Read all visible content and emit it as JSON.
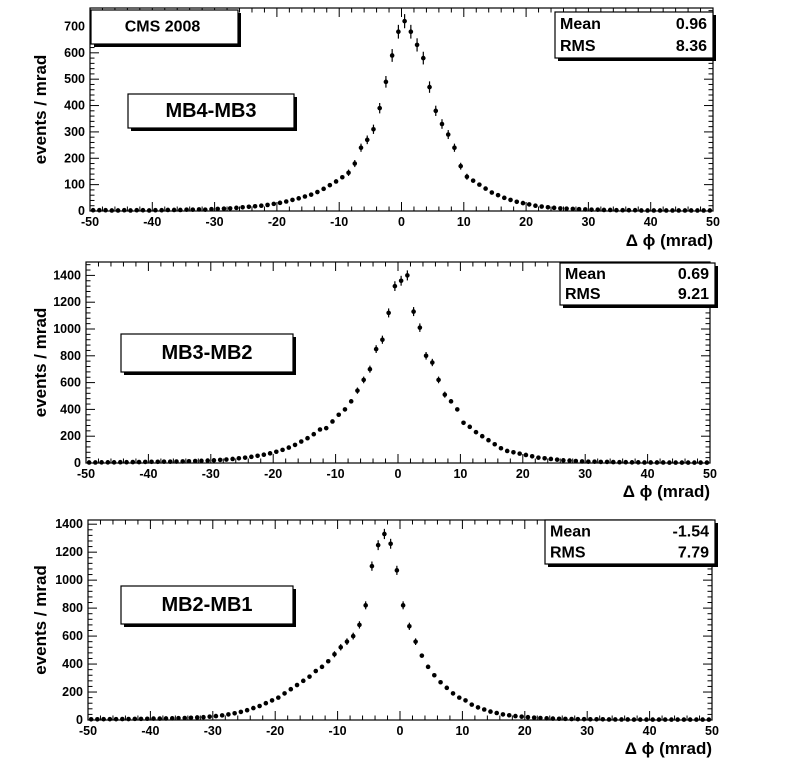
{
  "chart_data": [
    {
      "type": "scatter",
      "title": "MB4-MB3",
      "experiment_label": "CMS 2008",
      "xlabel": "Δ ϕ (mrad)",
      "ylabel": "events / mrad",
      "xlim": [
        -50,
        50
      ],
      "ylim": [
        0,
        770
      ],
      "x_ticks": [
        "-50",
        "-40",
        "-30",
        "-20",
        "-10",
        "0",
        "10",
        "20",
        "30",
        "40",
        "50"
      ],
      "y_ticks": [
        "0",
        "100",
        "200",
        "300",
        "400",
        "500",
        "600",
        "700"
      ],
      "stats": {
        "mean_label": "Mean",
        "mean": "0.96",
        "rms_label": "RMS",
        "rms": "8.36"
      },
      "series": [
        {
          "name": "MB4-MB3",
          "x": [
            -49.5,
            -48.5,
            -47.5,
            -46.5,
            -45.5,
            -44.5,
            -43.5,
            -42.5,
            -41.5,
            -40.5,
            -39.5,
            -38.5,
            -37.5,
            -36.5,
            -35.5,
            -34.5,
            -33.5,
            -32.5,
            -31.5,
            -30.5,
            -29.5,
            -28.5,
            -27.5,
            -26.5,
            -25.5,
            -24.5,
            -23.5,
            -22.5,
            -21.5,
            -20.5,
            -19.5,
            -18.5,
            -17.5,
            -16.5,
            -15.5,
            -14.5,
            -13.5,
            -12.5,
            -11.5,
            -10.5,
            -9.5,
            -8.5,
            -7.5,
            -6.5,
            -5.5,
            -4.5,
            -3.5,
            -2.5,
            -1.5,
            -0.5,
            0.5,
            1.5,
            2.5,
            3.5,
            4.5,
            5.5,
            6.5,
            7.5,
            8.5,
            9.5,
            10.5,
            11.5,
            12.5,
            13.5,
            14.5,
            15.5,
            16.5,
            17.5,
            18.5,
            19.5,
            20.5,
            21.5,
            22.5,
            23.5,
            24.5,
            25.5,
            26.5,
            27.5,
            28.5,
            29.5,
            30.5,
            31.5,
            32.5,
            33.5,
            34.5,
            35.5,
            36.5,
            37.5,
            38.5,
            39.5,
            40.5,
            41.5,
            42.5,
            43.5,
            44.5,
            45.5,
            46.5,
            47.5,
            48.5,
            49.5
          ],
          "y": [
            3,
            3,
            3,
            2,
            2,
            3,
            2,
            3,
            3,
            2,
            3,
            3,
            4,
            4,
            4,
            5,
            5,
            6,
            5,
            7,
            8,
            9,
            10,
            12,
            14,
            16,
            18,
            20,
            23,
            27,
            31,
            36,
            42,
            48,
            55,
            62,
            72,
            84,
            98,
            112,
            128,
            145,
            180,
            240,
            270,
            310,
            390,
            490,
            590,
            680,
            720,
            680,
            630,
            580,
            470,
            380,
            330,
            290,
            240,
            170,
            130,
            115,
            100,
            85,
            70,
            60,
            50,
            42,
            35,
            30,
            25,
            20,
            17,
            14,
            12,
            10,
            9,
            8,
            7,
            6,
            5,
            5,
            4,
            4,
            3,
            3,
            3,
            3,
            2,
            2,
            2,
            2,
            2,
            2,
            2,
            2,
            2,
            2,
            2,
            2
          ],
          "err": [
            1.7,
            1.7,
            1.7,
            1.4,
            1.4,
            1.7,
            1.4,
            1.7,
            1.7,
            1.4,
            1.7,
            1.7,
            2,
            2,
            2,
            2.2,
            2.2,
            2.4,
            2.2,
            2.6,
            2.8,
            3,
            3.2,
            3.5,
            3.7,
            4,
            4.2,
            4.5,
            4.8,
            5.2,
            5.6,
            6,
            6.5,
            6.9,
            7.4,
            7.9,
            8.5,
            9.2,
            9.9,
            10.6,
            11.3,
            12,
            13.4,
            15.5,
            16.4,
            17.6,
            19.7,
            22.1,
            24.3,
            26.1,
            26.8,
            26.1,
            25.1,
            24.1,
            21.7,
            19.5,
            18.2,
            17,
            15.5,
            13,
            11.4,
            10.7,
            10,
            9.2,
            8.4,
            7.7,
            7.1,
            6.5,
            5.9,
            5.5,
            5,
            4.5,
            4.1,
            3.7,
            3.5,
            3.2,
            3,
            2.8,
            2.6,
            2.4,
            2.2,
            2.2,
            2,
            2,
            1.7,
            1.7,
            1.7,
            1.7,
            1.4,
            1.4,
            1.4,
            1.4,
            1.4,
            1.4,
            1.4,
            1.4,
            1.4,
            1.4,
            1.4,
            1.4
          ]
        }
      ]
    },
    {
      "type": "scatter",
      "title": "MB3-MB2",
      "xlabel": "Δ ϕ (mrad)",
      "ylabel": "events / mrad",
      "xlim": [
        -50,
        50
      ],
      "ylim": [
        0,
        1500
      ],
      "x_ticks": [
        "-50",
        "-40",
        "-30",
        "-20",
        "-10",
        "0",
        "10",
        "20",
        "30",
        "40",
        "50"
      ],
      "y_ticks": [
        "0",
        "200",
        "400",
        "600",
        "800",
        "1000",
        "1200",
        "1400"
      ],
      "stats": {
        "mean_label": "Mean",
        "mean": "0.69",
        "rms_label": "RMS",
        "rms": "9.21"
      },
      "series": [
        {
          "name": "MB3-MB2",
          "x": [
            -49.5,
            -48.5,
            -47.5,
            -46.5,
            -45.5,
            -44.5,
            -43.5,
            -42.5,
            -41.5,
            -40.5,
            -39.5,
            -38.5,
            -37.5,
            -36.5,
            -35.5,
            -34.5,
            -33.5,
            -32.5,
            -31.5,
            -30.5,
            -29.5,
            -28.5,
            -27.5,
            -26.5,
            -25.5,
            -24.5,
            -23.5,
            -22.5,
            -21.5,
            -20.5,
            -19.5,
            -18.5,
            -17.5,
            -16.5,
            -15.5,
            -14.5,
            -13.5,
            -12.5,
            -11.5,
            -10.5,
            -9.5,
            -8.5,
            -7.5,
            -6.5,
            -5.5,
            -4.5,
            -3.5,
            -2.5,
            -1.5,
            -0.5,
            0.5,
            1.5,
            2.5,
            3.5,
            4.5,
            5.5,
            6.5,
            7.5,
            8.5,
            9.5,
            10.5,
            11.5,
            12.5,
            13.5,
            14.5,
            15.5,
            16.5,
            17.5,
            18.5,
            19.5,
            20.5,
            21.5,
            22.5,
            23.5,
            24.5,
            25.5,
            26.5,
            27.5,
            28.5,
            29.5,
            30.5,
            31.5,
            32.5,
            33.5,
            34.5,
            35.5,
            36.5,
            37.5,
            38.5,
            39.5,
            40.5,
            41.5,
            42.5,
            43.5,
            44.5,
            45.5,
            46.5,
            47.5,
            48.5,
            49.5
          ],
          "y": [
            4,
            4,
            5,
            5,
            5,
            6,
            6,
            7,
            7,
            8,
            9,
            9,
            10,
            10,
            11,
            12,
            13,
            15,
            16,
            18,
            20,
            23,
            26,
            30,
            35,
            40,
            46,
            54,
            62,
            72,
            84,
            98,
            115,
            135,
            160,
            185,
            215,
            250,
            260,
            310,
            360,
            400,
            460,
            540,
            620,
            700,
            850,
            920,
            1120,
            1320,
            1360,
            1400,
            1130,
            1010,
            800,
            750,
            620,
            510,
            460,
            400,
            300,
            270,
            230,
            200,
            170,
            140,
            110,
            90,
            80,
            70,
            60,
            50,
            40,
            35,
            30,
            25,
            20,
            18,
            15,
            12,
            10,
            10,
            8,
            8,
            7,
            6,
            6,
            5,
            5,
            4,
            4,
            4,
            4,
            3,
            3,
            3,
            3,
            3,
            3,
            3
          ],
          "err": [
            2,
            2,
            2.2,
            2.2,
            2.2,
            2.4,
            2.4,
            2.6,
            2.6,
            2.8,
            3,
            3,
            3.2,
            3.2,
            3.3,
            3.5,
            3.6,
            3.9,
            4,
            4.2,
            4.5,
            4.8,
            5.1,
            5.5,
            5.9,
            6.3,
            6.8,
            7.3,
            7.9,
            8.5,
            9.2,
            9.9,
            10.7,
            11.6,
            12.6,
            13.6,
            14.7,
            15.8,
            16.1,
            17.6,
            19,
            20,
            21.4,
            23.2,
            24.9,
            26.5,
            29.2,
            30.3,
            33.5,
            36.3,
            36.9,
            37.4,
            33.6,
            31.8,
            28.3,
            27.4,
            24.9,
            22.6,
            21.4,
            20,
            17.3,
            16.4,
            15.2,
            14.1,
            13,
            11.8,
            10.5,
            9.5,
            8.9,
            8.4,
            7.7,
            7.1,
            6.3,
            5.9,
            5.5,
            5,
            4.5,
            4.2,
            3.9,
            3.5,
            3.2,
            3.2,
            2.8,
            2.8,
            2.6,
            2.4,
            2.4,
            2.2,
            2.2,
            2,
            2,
            2,
            2,
            1.7,
            1.7,
            1.7,
            1.7,
            1.7,
            1.7,
            1.7
          ]
        }
      ]
    },
    {
      "type": "scatter",
      "title": "MB2-MB1",
      "xlabel": "Δ ϕ (mrad)",
      "ylabel": "events / mrad",
      "xlim": [
        -50,
        50
      ],
      "ylim": [
        0,
        1430
      ],
      "x_ticks": [
        "-50",
        "-40",
        "-30",
        "-20",
        "-10",
        "0",
        "10",
        "20",
        "30",
        "40",
        "50"
      ],
      "y_ticks": [
        "0",
        "200",
        "400",
        "600",
        "800",
        "1000",
        "1200",
        "1400"
      ],
      "stats": {
        "mean_label": "Mean",
        "mean": "-1.54",
        "rms_label": "RMS",
        "rms": "7.79"
      },
      "series": [
        {
          "name": "MB2-MB1",
          "x": [
            -49.5,
            -48.5,
            -47.5,
            -46.5,
            -45.5,
            -44.5,
            -43.5,
            -42.5,
            -41.5,
            -40.5,
            -39.5,
            -38.5,
            -37.5,
            -36.5,
            -35.5,
            -34.5,
            -33.5,
            -32.5,
            -31.5,
            -30.5,
            -29.5,
            -28.5,
            -27.5,
            -26.5,
            -25.5,
            -24.5,
            -23.5,
            -22.5,
            -21.5,
            -20.5,
            -19.5,
            -18.5,
            -17.5,
            -16.5,
            -15.5,
            -14.5,
            -13.5,
            -12.5,
            -11.5,
            -10.5,
            -9.5,
            -8.5,
            -7.5,
            -6.5,
            -5.5,
            -4.5,
            -3.5,
            -2.5,
            -1.5,
            -0.5,
            0.5,
            1.5,
            2.5,
            3.5,
            4.5,
            5.5,
            6.5,
            7.5,
            8.5,
            9.5,
            10.5,
            11.5,
            12.5,
            13.5,
            14.5,
            15.5,
            16.5,
            17.5,
            18.5,
            19.5,
            20.5,
            21.5,
            22.5,
            23.5,
            24.5,
            25.5,
            26.5,
            27.5,
            28.5,
            29.5,
            30.5,
            31.5,
            32.5,
            33.5,
            34.5,
            35.5,
            36.5,
            37.5,
            38.5,
            39.5,
            40.5,
            41.5,
            42.5,
            43.5,
            44.5,
            45.5,
            46.5,
            47.5,
            48.5,
            49.5
          ],
          "y": [
            5,
            5,
            6,
            6,
            6,
            7,
            7,
            8,
            8,
            9,
            10,
            10,
            11,
            12,
            13,
            14,
            16,
            18,
            20,
            24,
            28,
            33,
            40,
            48,
            58,
            70,
            85,
            100,
            120,
            140,
            160,
            190,
            220,
            250,
            280,
            310,
            350,
            380,
            420,
            470,
            520,
            560,
            600,
            680,
            820,
            1100,
            1250,
            1330,
            1260,
            1070,
            820,
            670,
            560,
            460,
            380,
            320,
            270,
            230,
            190,
            160,
            140,
            110,
            90,
            75,
            60,
            50,
            40,
            34,
            28,
            24,
            20,
            17,
            14,
            12,
            10,
            9,
            8,
            7,
            6,
            6,
            5,
            5,
            5,
            4,
            4,
            4,
            4,
            3,
            3,
            3,
            3,
            3,
            3,
            3,
            3,
            3,
            3,
            3,
            3,
            3
          ],
          "err": [
            2.2,
            2.2,
            2.4,
            2.4,
            2.4,
            2.6,
            2.6,
            2.8,
            2.8,
            3,
            3.2,
            3.2,
            3.3,
            3.5,
            3.6,
            3.7,
            4,
            4.2,
            4.5,
            4.9,
            5.3,
            5.7,
            6.3,
            6.9,
            7.6,
            8.4,
            9.2,
            10,
            11,
            11.8,
            12.6,
            13.8,
            14.8,
            15.8,
            16.7,
            17.6,
            18.7,
            19.5,
            20.5,
            21.7,
            22.8,
            23.7,
            24.5,
            26.1,
            28.6,
            33.2,
            35.4,
            36.5,
            35.5,
            32.7,
            28.6,
            25.9,
            23.7,
            21.4,
            19.5,
            17.9,
            16.4,
            15.2,
            13.8,
            12.6,
            11.8,
            10.5,
            9.5,
            8.7,
            7.7,
            7.1,
            6.3,
            5.8,
            5.3,
            4.9,
            4.5,
            4.1,
            3.7,
            3.5,
            3.2,
            3,
            2.8,
            2.6,
            2.4,
            2.4,
            2.2,
            2.2,
            2.2,
            2,
            2,
            2,
            2,
            1.7,
            1.7,
            1.7,
            1.7,
            1.7,
            1.7,
            1.7,
            1.7,
            1.7,
            1.7,
            1.7,
            1.7,
            1.7
          ]
        }
      ]
    }
  ]
}
